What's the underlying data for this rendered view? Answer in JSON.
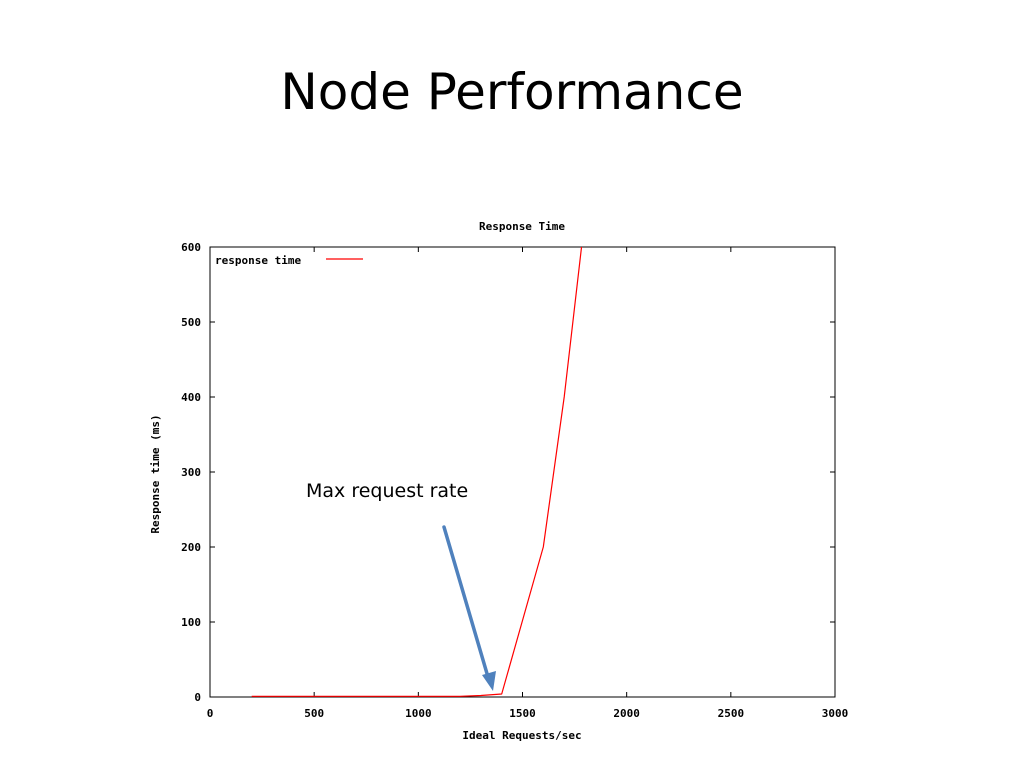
{
  "slide": {
    "title": "Node Performance",
    "annotation": "Max request rate"
  },
  "colors": {
    "series_line": "#ff0000",
    "annotation_arrow": "#4f81bd",
    "axes": "#000000"
  },
  "chart_data": {
    "type": "line",
    "title": "Response Time",
    "xlabel": "Ideal Requests/sec",
    "ylabel": "Response time (ms)",
    "xlim": [
      0,
      3000
    ],
    "ylim": [
      0,
      600
    ],
    "xticks": [
      0,
      500,
      1000,
      1500,
      2000,
      2500,
      3000
    ],
    "yticks": [
      0,
      100,
      200,
      300,
      400,
      500,
      600
    ],
    "grid": false,
    "legend_position": "top-left",
    "series": [
      {
        "name": "response time",
        "color": "#ff0000",
        "x": [
          200,
          400,
          600,
          800,
          1000,
          1200,
          1300,
          1400,
          1600,
          1700,
          1800
        ],
        "y": [
          1,
          1,
          1,
          1,
          1,
          1,
          2,
          4,
          200,
          400,
          640
        ]
      }
    ],
    "annotations": [
      {
        "text": "Max request rate",
        "target_x": 1380,
        "target_y": 5
      }
    ]
  }
}
